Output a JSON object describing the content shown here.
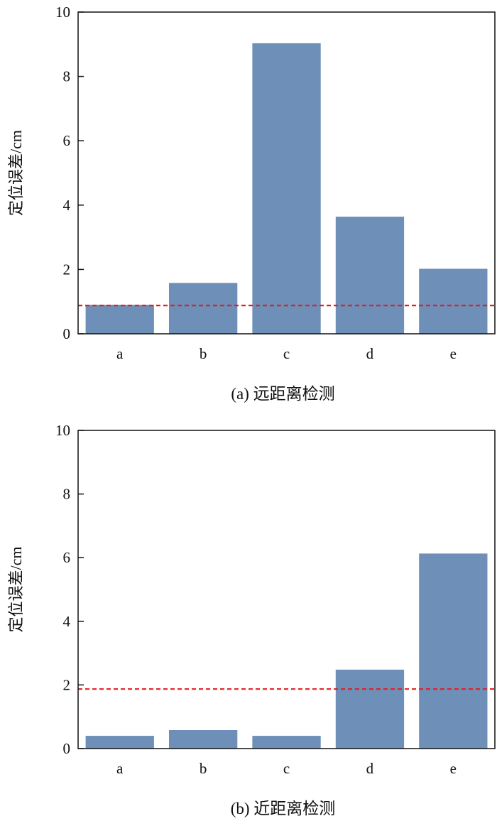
{
  "chart_data": [
    {
      "type": "bar",
      "title": "",
      "caption": "(a) 远距离检测",
      "ylabel": "定位误差/cm",
      "xlabel": "",
      "categories": [
        "a",
        "b",
        "c",
        "d",
        "e"
      ],
      "values": [
        0.9,
        1.58,
        9.03,
        3.64,
        2.02
      ],
      "threshold": 0.88,
      "threshold_style": "red dashed",
      "ylim": [
        0,
        10
      ],
      "yticks": [
        "0",
        "2",
        "4",
        "6",
        "8",
        "10"
      ],
      "grid": false,
      "bar_color": "#6d8fb8",
      "threshold_color": "#e02020"
    },
    {
      "type": "bar",
      "title": "",
      "caption": "(b) 近距离检测",
      "ylabel": "定位误差/cm",
      "xlabel": "",
      "categories": [
        "a",
        "b",
        "c",
        "d",
        "e"
      ],
      "values": [
        0.4,
        0.58,
        0.4,
        2.48,
        6.13
      ],
      "threshold": 1.87,
      "threshold_style": "red dashed",
      "ylim": [
        0,
        10
      ],
      "yticks": [
        "0",
        "2",
        "4",
        "6",
        "8",
        "10"
      ],
      "grid": false,
      "bar_color": "#6d8fb8",
      "threshold_color": "#e02020"
    }
  ]
}
